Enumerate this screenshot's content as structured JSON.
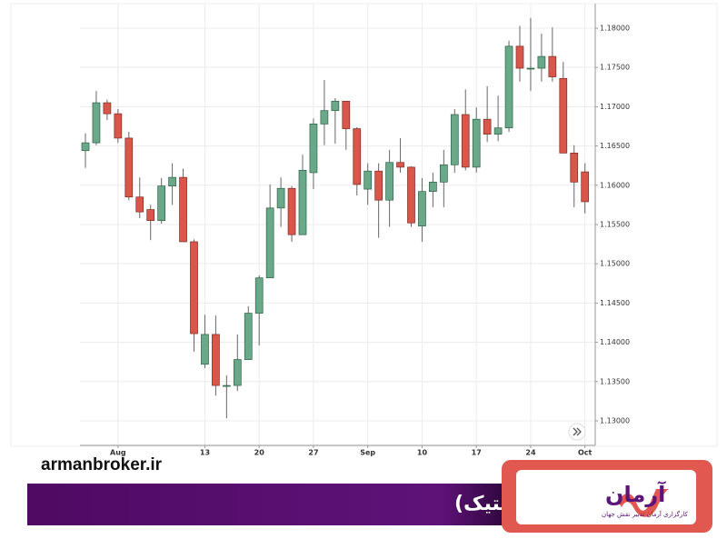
{
  "chart_data": {
    "type": "candlestick",
    "categories": [
      null,
      null,
      null,
      "Aug",
      null,
      null,
      null,
      null,
      null,
      null,
      null,
      "13",
      null,
      null,
      null,
      null,
      "20",
      null,
      null,
      null,
      null,
      "27",
      null,
      null,
      null,
      null,
      "Sep",
      null,
      null,
      null,
      null,
      "10",
      null,
      null,
      null,
      null,
      "17",
      null,
      null,
      null,
      null,
      "24",
      null,
      null,
      null,
      null,
      "Oct"
    ],
    "open": [
      1.1644,
      1.1654,
      1.1705,
      1.1691,
      1.166,
      1.1585,
      1.1569,
      1.1555,
      1.1599,
      1.161,
      1.1528,
      1.1372,
      1.141,
      1.1345,
      1.1345,
      1.1378,
      1.1437,
      1.1482,
      1.1571,
      1.1596,
      1.1537,
      1.1616,
      1.1678,
      1.1695,
      1.1707,
      1.1672,
      1.1595,
      1.1618,
      1.1581,
      1.1629,
      1.1623,
      1.1548,
      1.1592,
      1.1604,
      1.1626,
      1.169,
      1.1623,
      1.1684,
      1.1665,
      1.1673,
      1.1777,
      1.1749,
      1.1749,
      1.1764,
      1.1736,
      1.1641,
      1.1617
    ],
    "high": [
      1.1666,
      1.172,
      1.1709,
      1.1697,
      1.1668,
      1.161,
      1.1575,
      1.1609,
      1.1628,
      1.1621,
      1.1531,
      1.1435,
      1.1434,
      1.1358,
      1.141,
      1.1446,
      1.1485,
      1.1601,
      1.161,
      1.1599,
      1.1639,
      1.1685,
      1.1734,
      1.1711,
      1.1707,
      1.1674,
      1.1628,
      1.1628,
      1.1645,
      1.166,
      1.1624,
      1.1609,
      1.1616,
      1.1645,
      1.1697,
      1.1722,
      1.1699,
      1.1726,
      1.1714,
      1.1784,
      1.1803,
      1.1813,
      1.1793,
      1.1801,
      1.1757,
      1.1651,
      1.1628
    ],
    "low": [
      1.1622,
      1.1651,
      1.1683,
      1.1654,
      1.1581,
      1.1558,
      1.153,
      1.1551,
      1.1575,
      1.1528,
      1.1388,
      1.1367,
      1.1332,
      1.1303,
      1.1338,
      1.1378,
      1.1396,
      1.1482,
      1.1547,
      1.1528,
      1.1537,
      1.1595,
      1.1651,
      1.1653,
      1.1645,
      1.1587,
      1.1575,
      1.1533,
      1.1547,
      1.1616,
      1.1547,
      1.1528,
      1.1572,
      1.1572,
      1.1616,
      1.1619,
      1.1616,
      1.1655,
      1.1656,
      1.1668,
      1.1732,
      1.172,
      1.1732,
      1.1732,
      1.1641,
      1.1572,
      1.1564
    ],
    "close": [
      1.1654,
      1.1705,
      1.1691,
      1.166,
      1.1585,
      1.1566,
      1.1555,
      1.1599,
      1.161,
      1.1528,
      1.1411,
      1.141,
      1.1345,
      1.1345,
      1.1378,
      1.1437,
      1.1482,
      1.1571,
      1.1596,
      1.1537,
      1.1619,
      1.1678,
      1.1695,
      1.1707,
      1.1672,
      1.1601,
      1.1618,
      1.1581,
      1.1629,
      1.1623,
      1.1552,
      1.1592,
      1.1604,
      1.1626,
      1.169,
      1.1623,
      1.1684,
      1.1665,
      1.1673,
      1.1777,
      1.1749,
      1.1749,
      1.1764,
      1.1738,
      1.1641,
      1.1604,
      1.1579
    ],
    "up_color": "#6aa88a",
    "down_color": "#d9574a",
    "ylim": [
      1.12687,
      1.18266
    ],
    "yticks": [
      {
        "value": 1.13,
        "label": "1.13000"
      },
      {
        "value": 1.135,
        "label": "1.13500"
      },
      {
        "value": 1.14,
        "label": "1.14000"
      },
      {
        "value": 1.145,
        "label": "1.14500"
      },
      {
        "value": 1.15,
        "label": "1.15000"
      },
      {
        "value": 1.155,
        "label": "1.15500"
      },
      {
        "value": 1.16,
        "label": "1.16000"
      },
      {
        "value": 1.165,
        "label": "1.16500"
      },
      {
        "value": 1.17,
        "label": "1.17000"
      },
      {
        "value": 1.175,
        "label": "1.17500"
      },
      {
        "value": 1.18,
        "label": "1.18000"
      }
    ],
    "grid": true
  },
  "site": "armanbroker.ir",
  "banner_title": "نمودار شمعی (کندل استیک)",
  "logo": {
    "name": "آرمان",
    "tagline": "کارگزاری آرمان تدبیر نقش جهان"
  }
}
